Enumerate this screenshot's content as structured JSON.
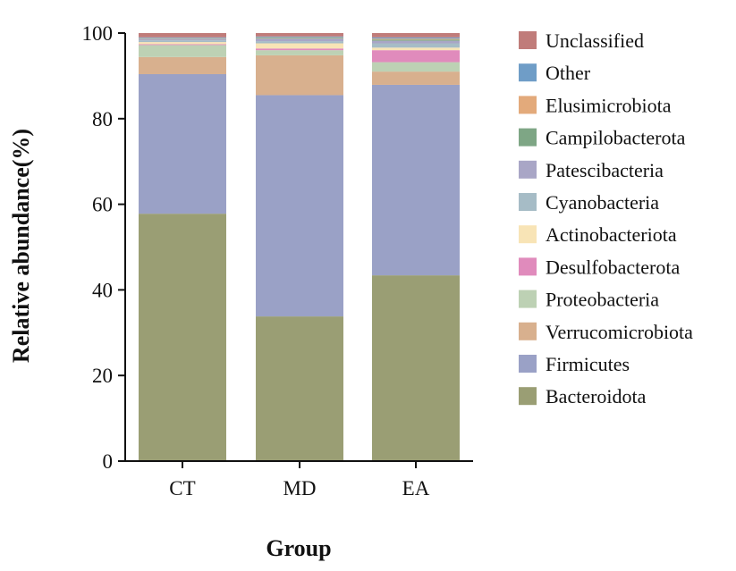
{
  "chart_data": {
    "type": "bar",
    "stacked": true,
    "xlabel": "Group",
    "ylabel": "Relative abundance(%)",
    "ylim": [
      0,
      100
    ],
    "yticks": [
      0,
      20,
      40,
      60,
      80,
      100
    ],
    "grid": false,
    "legend_position": "right",
    "categories": [
      "CT",
      "MD",
      "EA"
    ],
    "series": [
      {
        "name": "Bacteroidota",
        "color": "#9a9e74",
        "values": [
          57.8,
          33.8,
          43.4
        ]
      },
      {
        "name": "Firmicutes",
        "color": "#9aa1c6",
        "values": [
          32.6,
          51.7,
          44.5
        ]
      },
      {
        "name": "Verrucomicrobiota",
        "color": "#d8b08e",
        "values": [
          4.0,
          9.3,
          3.1
        ]
      },
      {
        "name": "Proteobacteria",
        "color": "#bdd1b4",
        "values": [
          2.8,
          1.2,
          2.2
        ]
      },
      {
        "name": "Desulfobacterota",
        "color": "#e08bbc",
        "values": [
          0.2,
          0.4,
          2.8
        ]
      },
      {
        "name": "Actinobacteriota",
        "color": "#f8e4b6",
        "values": [
          0.5,
          1.2,
          0.6
        ]
      },
      {
        "name": "Cyanobacteria",
        "color": "#a6bcc6",
        "values": [
          0.4,
          0.5,
          1.0
        ]
      },
      {
        "name": "Patescibacteria",
        "color": "#a9a6c6",
        "values": [
          0.3,
          0.6,
          0.6
        ]
      },
      {
        "name": "Campilobacterota",
        "color": "#7ea685",
        "values": [
          0.1,
          0.2,
          0.3
        ]
      },
      {
        "name": "Elusimicrobiota",
        "color": "#e3aa7b",
        "values": [
          0.1,
          0.1,
          0.2
        ]
      },
      {
        "name": "Other",
        "color": "#6f9dc7",
        "values": [
          0.2,
          0.2,
          0.3
        ]
      },
      {
        "name": "Unclassified",
        "color": "#c07c7a",
        "values": [
          1.0,
          0.8,
          1.0
        ]
      }
    ]
  }
}
